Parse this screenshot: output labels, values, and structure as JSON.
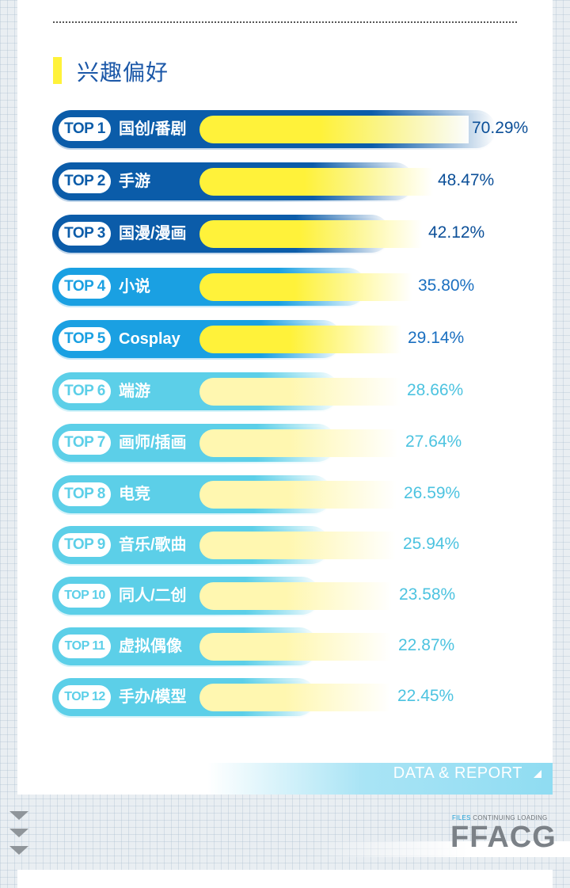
{
  "section": {
    "title": "兴趣偏好"
  },
  "colors": {
    "dark_blue": "#0b5ca9",
    "mid_blue": "#1aa0e2",
    "light_blue": "#5ccfe8",
    "yellow": "#fff23a",
    "pale_yellow": "#fff7b0"
  },
  "rankings": [
    {
      "rank": "TOP 1",
      "label": "国创/番剧",
      "percent": "70.29%",
      "value": 70.29,
      "tier": "dark"
    },
    {
      "rank": "TOP 2",
      "label": "手游",
      "percent": "48.47%",
      "value": 48.47,
      "tier": "dark"
    },
    {
      "rank": "TOP 3",
      "label": "国漫/漫画",
      "percent": "42.12%",
      "value": 42.12,
      "tier": "dark"
    },
    {
      "rank": "TOP 4",
      "label": "小说",
      "percent": "35.80%",
      "value": 35.8,
      "tier": "mid"
    },
    {
      "rank": "TOP 5",
      "label": "Cosplay",
      "percent": "29.14%",
      "value": 29.14,
      "tier": "mid"
    },
    {
      "rank": "TOP 6",
      "label": "端游",
      "percent": "28.66%",
      "value": 28.66,
      "tier": "light"
    },
    {
      "rank": "TOP 7",
      "label": "画师/插画",
      "percent": "27.64%",
      "value": 27.64,
      "tier": "light"
    },
    {
      "rank": "TOP 8",
      "label": "电竞",
      "percent": "26.59%",
      "value": 26.59,
      "tier": "light"
    },
    {
      "rank": "TOP 9",
      "label": "音乐/歌曲",
      "percent": "25.94%",
      "value": 25.94,
      "tier": "light"
    },
    {
      "rank": "TOP 10",
      "label": "同人/二创",
      "percent": "23.58%",
      "value": 23.58,
      "tier": "light"
    },
    {
      "rank": "TOP 11",
      "label": "虚拟偶像",
      "percent": "22.87%",
      "value": 22.87,
      "tier": "light"
    },
    {
      "rank": "TOP 12",
      "label": "手办/模型",
      "percent": "22.45%",
      "value": 22.45,
      "tier": "light"
    }
  ],
  "footer": {
    "label": "DATA & REPORT",
    "brand_sub_accent": "FILES",
    "brand_sub": " CONTINUING LOADING",
    "brand": "FFACG"
  }
}
